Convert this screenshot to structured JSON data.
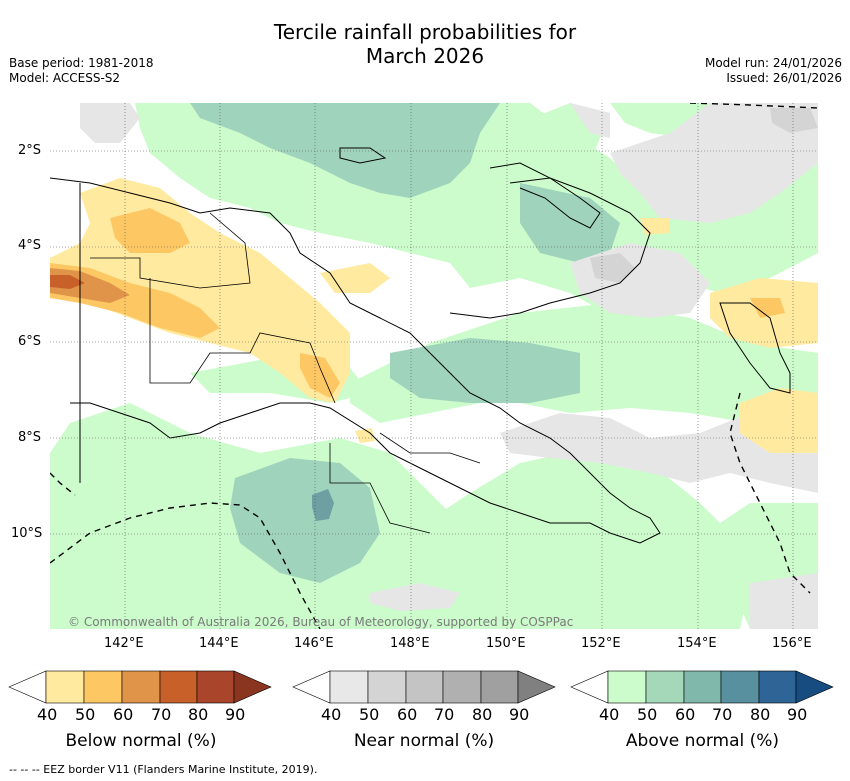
{
  "header": {
    "title_line1": "Tercile rainfall probabilities for",
    "title_line2": "March 2026",
    "base_period": "Base period: 1981-2018",
    "model": "Model: ACCESS-S2",
    "model_run": "Model run: 24/01/2026",
    "issued": "Issued: 26/01/2026"
  },
  "map": {
    "lat_labels": [
      "2°S",
      "4°S",
      "6°S",
      "8°S",
      "10°S"
    ],
    "lon_labels": [
      "142°E",
      "144°E",
      "146°E",
      "148°E",
      "150°E",
      "152°E",
      "154°E",
      "156°E"
    ],
    "copyright": "© Commonwealth of Australia 2026, Bureau of Meteorology, supported by COSPPac"
  },
  "colorbars": [
    {
      "title": "Below normal (%)",
      "ticks": [
        "40",
        "50",
        "60",
        "70",
        "80",
        "90"
      ],
      "colors": [
        "#ffffff",
        "#ffeaa0",
        "#fdc864",
        "#e0944a",
        "#c8602a",
        "#a8452a",
        "#8a3520"
      ]
    },
    {
      "title": "Near normal (%)",
      "ticks": [
        "40",
        "50",
        "60",
        "70",
        "80",
        "90"
      ],
      "colors": [
        "#ffffff",
        "#e8e8e8",
        "#d4d4d4",
        "#c4c4c4",
        "#b0b0b0",
        "#a0a0a0",
        "#808080"
      ]
    },
    {
      "title": "Above normal (%)",
      "ticks": [
        "40",
        "50",
        "60",
        "70",
        "80",
        "90"
      ],
      "colors": [
        "#ffffff",
        "#ccfccc",
        "#a4d8b8",
        "#80b8ac",
        "#5890a0",
        "#2f6496",
        "#174c80"
      ]
    }
  ],
  "footnote": "-- --  -- EEZ border V11 (Flanders Marine Institute, 2019)."
}
